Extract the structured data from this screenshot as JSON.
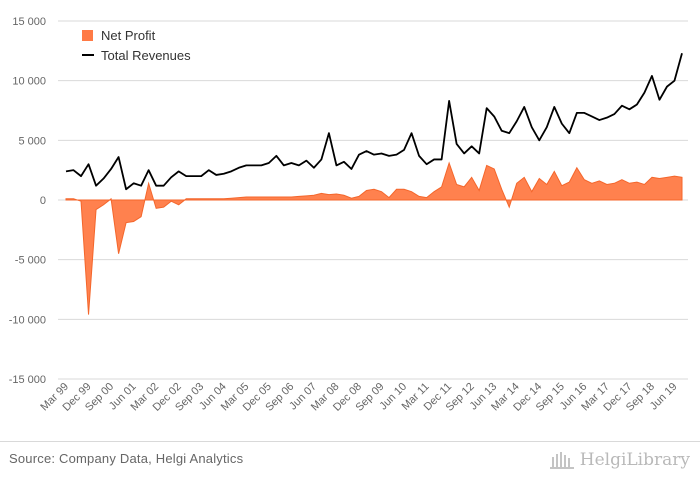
{
  "source": "Source: Company Data, Helgi Analytics",
  "logo_text": "HelgiLibrary",
  "colors": {
    "net_profit": "#ff7a45",
    "net_profit_stroke": "#f4662b",
    "total_revenues": "#000000",
    "grid": "#d9d9d9"
  },
  "chart_data": {
    "type": "area",
    "title": "",
    "xlabel": "",
    "ylabel": "",
    "ylim": [
      -15000,
      15000
    ],
    "y_ticks": [
      -15000,
      -10000,
      -5000,
      0,
      5000,
      10000,
      15000
    ],
    "y_tick_labels": [
      "-15 000",
      "-10 000",
      "-5 000",
      "0",
      "5 000",
      "10 000",
      "15 000"
    ],
    "x_tick_labels": [
      "Mar 99",
      "Dec 99",
      "Sep 00",
      "Jun 01",
      "Mar 02",
      "Dec 02",
      "Sep 03",
      "Jun 04",
      "Mar 05",
      "Dec 05",
      "Sep 06",
      "Jun 07",
      "Mar 08",
      "Dec 08",
      "Sep 09",
      "Jun 10",
      "Mar 11",
      "Dec 11",
      "Sep 12",
      "Jun 13",
      "Mar 14",
      "Dec 14",
      "Sep 15",
      "Jun 16",
      "Mar 17",
      "Dec 17",
      "Sep 18",
      "Jun 19"
    ],
    "x": [
      "Mar 99",
      "Jun 99",
      "Sep 99",
      "Dec 99",
      "Mar 00",
      "Jun 00",
      "Sep 00",
      "Dec 00",
      "Mar 01",
      "Jun 01",
      "Sep 01",
      "Dec 01",
      "Mar 02",
      "Jun 02",
      "Sep 02",
      "Dec 02",
      "Mar 03",
      "Jun 03",
      "Sep 03",
      "Dec 03",
      "Mar 04",
      "Jun 04",
      "Sep 04",
      "Dec 04",
      "Mar 05",
      "Jun 05",
      "Sep 05",
      "Dec 05",
      "Mar 06",
      "Jun 06",
      "Sep 06",
      "Dec 06",
      "Mar 07",
      "Jun 07",
      "Sep 07",
      "Dec 07",
      "Mar 08",
      "Jun 08",
      "Sep 08",
      "Dec 08",
      "Mar 09",
      "Jun 09",
      "Sep 09",
      "Dec 09",
      "Mar 10",
      "Jun 10",
      "Sep 10",
      "Dec 10",
      "Mar 11",
      "Jun 11",
      "Sep 11",
      "Dec 11",
      "Mar 12",
      "Jun 12",
      "Sep 12",
      "Dec 12",
      "Mar 13",
      "Jun 13",
      "Sep 13",
      "Dec 13",
      "Mar 14",
      "Jun 14",
      "Sep 14",
      "Dec 14",
      "Mar 15",
      "Jun 15",
      "Sep 15",
      "Dec 15",
      "Mar 16",
      "Jun 16",
      "Sep 16",
      "Dec 16",
      "Mar 17",
      "Jun 17",
      "Sep 17",
      "Dec 17",
      "Mar 18",
      "Jun 18",
      "Sep 18",
      "Dec 18",
      "Mar 19",
      "Jun 19",
      "Sep 19"
    ],
    "legend_position": "top-left",
    "series": [
      {
        "name": "Net Profit",
        "kind": "area",
        "values": [
          100,
          100,
          -100,
          -9600,
          -800,
          -400,
          100,
          -4500,
          -1900,
          -1800,
          -1400,
          1400,
          -700,
          -600,
          -100,
          -400,
          100,
          100,
          100,
          100,
          100,
          100,
          150,
          200,
          250,
          250,
          250,
          250,
          250,
          250,
          250,
          300,
          350,
          400,
          550,
          450,
          500,
          400,
          150,
          300,
          800,
          900,
          700,
          200,
          900,
          900,
          700,
          300,
          200,
          700,
          1100,
          3100,
          1300,
          1100,
          1900,
          800,
          2900,
          2600,
          900,
          -600,
          1400,
          1900,
          700,
          1800,
          1300,
          2400,
          1200,
          1500,
          2700,
          1700,
          1400,
          1600,
          1300,
          1400,
          1700,
          1400,
          1500,
          1300,
          1900,
          1800,
          1900,
          2000,
          1900
        ]
      },
      {
        "name": "Total Revenues",
        "kind": "line",
        "values": [
          2400,
          2500,
          2000,
          3000,
          1200,
          1800,
          2600,
          3600,
          900,
          1400,
          1200,
          2500,
          1200,
          1200,
          1900,
          2400,
          2000,
          2000,
          2000,
          2500,
          2100,
          2200,
          2400,
          2700,
          2900,
          2900,
          2900,
          3100,
          3700,
          2900,
          3100,
          2900,
          3300,
          2700,
          3400,
          5600,
          2900,
          3200,
          2600,
          3800,
          4100,
          3800,
          3900,
          3700,
          3800,
          4200,
          5600,
          3700,
          3000,
          3400,
          3400,
          8300,
          4700,
          3900,
          4500,
          3900,
          7700,
          7000,
          5800,
          5600,
          6600,
          7800,
          6100,
          5000,
          6100,
          7800,
          6400,
          5600,
          7300,
          7300,
          7000,
          6700,
          6900,
          7200,
          7900,
          7600,
          8000,
          9000,
          10400,
          8400,
          9500,
          10000,
          12300
        ]
      }
    ]
  }
}
